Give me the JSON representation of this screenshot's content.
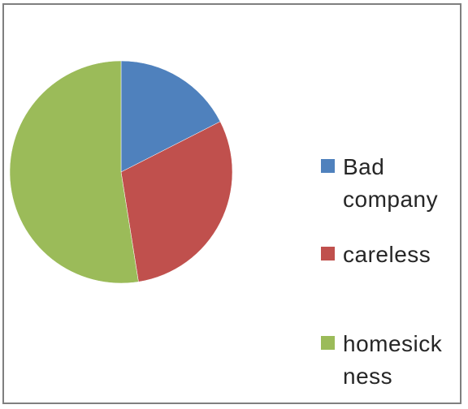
{
  "chart_data": {
    "type": "pie",
    "title": "",
    "categories": [
      "Bad company",
      "careless",
      "homesickness"
    ],
    "values": [
      17.5,
      30,
      52.5
    ],
    "colors": [
      "#4f81bd",
      "#c0504d",
      "#9bbb59"
    ],
    "legend": {
      "placement": "right",
      "entries": [
        {
          "label_lines": [
            "Bad",
            "company"
          ],
          "color": "#4f81bd"
        },
        {
          "label_lines": [
            "careless"
          ],
          "color": "#c0504d"
        },
        {
          "label_lines": [
            "homesick",
            "ness"
          ],
          "color": "#9bbb59"
        }
      ]
    }
  }
}
